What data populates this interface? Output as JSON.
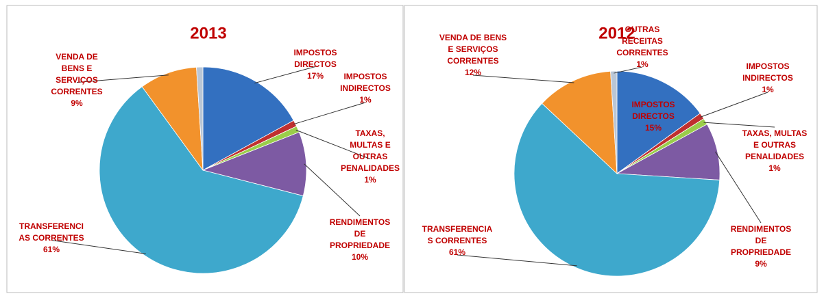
{
  "chart_data": [
    {
      "type": "pie",
      "title": "2013",
      "categories": [
        "IMPOSTOS\nDIRECTOS",
        "IMPOSTOS\nINDIRECTOS",
        "TAXAS,\nMULTAS E\nOUTRAS\nPENALIDADES",
        "RENDIMENTOS\nDE\nPROPRIEDADE",
        "TRANSFERENCI\nAS CORRENTES",
        "VENDA DE\nBENS E\nSERVIÇOS\nCORRENTES",
        null
      ],
      "values": [
        17,
        1,
        1,
        10,
        61,
        9,
        1
      ],
      "value_labels": [
        "17%",
        "1%",
        "1%",
        "10%",
        "61%",
        "9%",
        null
      ],
      "colors": [
        "#3370c0",
        "#c0302f",
        "#9acd4a",
        "#7d5aa3",
        "#3ea8cc",
        "#f2922c",
        "#b9c6d6"
      ]
    },
    {
      "type": "pie",
      "title": "2012",
      "categories": [
        "IMPOSTOS\nDIRECTOS",
        "IMPOSTOS\nINDIRECTOS",
        "TAXAS, MULTAS\nE OUTRAS\nPENALIDADES",
        "RENDIMENTOS\nDE\nPROPRIEDADE",
        "TRANSFERENCIA\nS CORRENTES",
        "VENDA DE BENS\nE SERVIÇOS\nCORRENTES",
        "OUTRAS\nRECEITAS\nCORRENTES"
      ],
      "values": [
        15,
        1,
        1,
        9,
        61,
        12,
        1
      ],
      "value_labels": [
        "15%",
        "1%",
        "1%",
        "9%",
        "61%",
        "12%",
        "1%"
      ],
      "colors": [
        "#3370c0",
        "#c0302f",
        "#9acd4a",
        "#7d5aa3",
        "#3ea8cc",
        "#f2922c",
        "#b9c6d6"
      ]
    }
  ]
}
